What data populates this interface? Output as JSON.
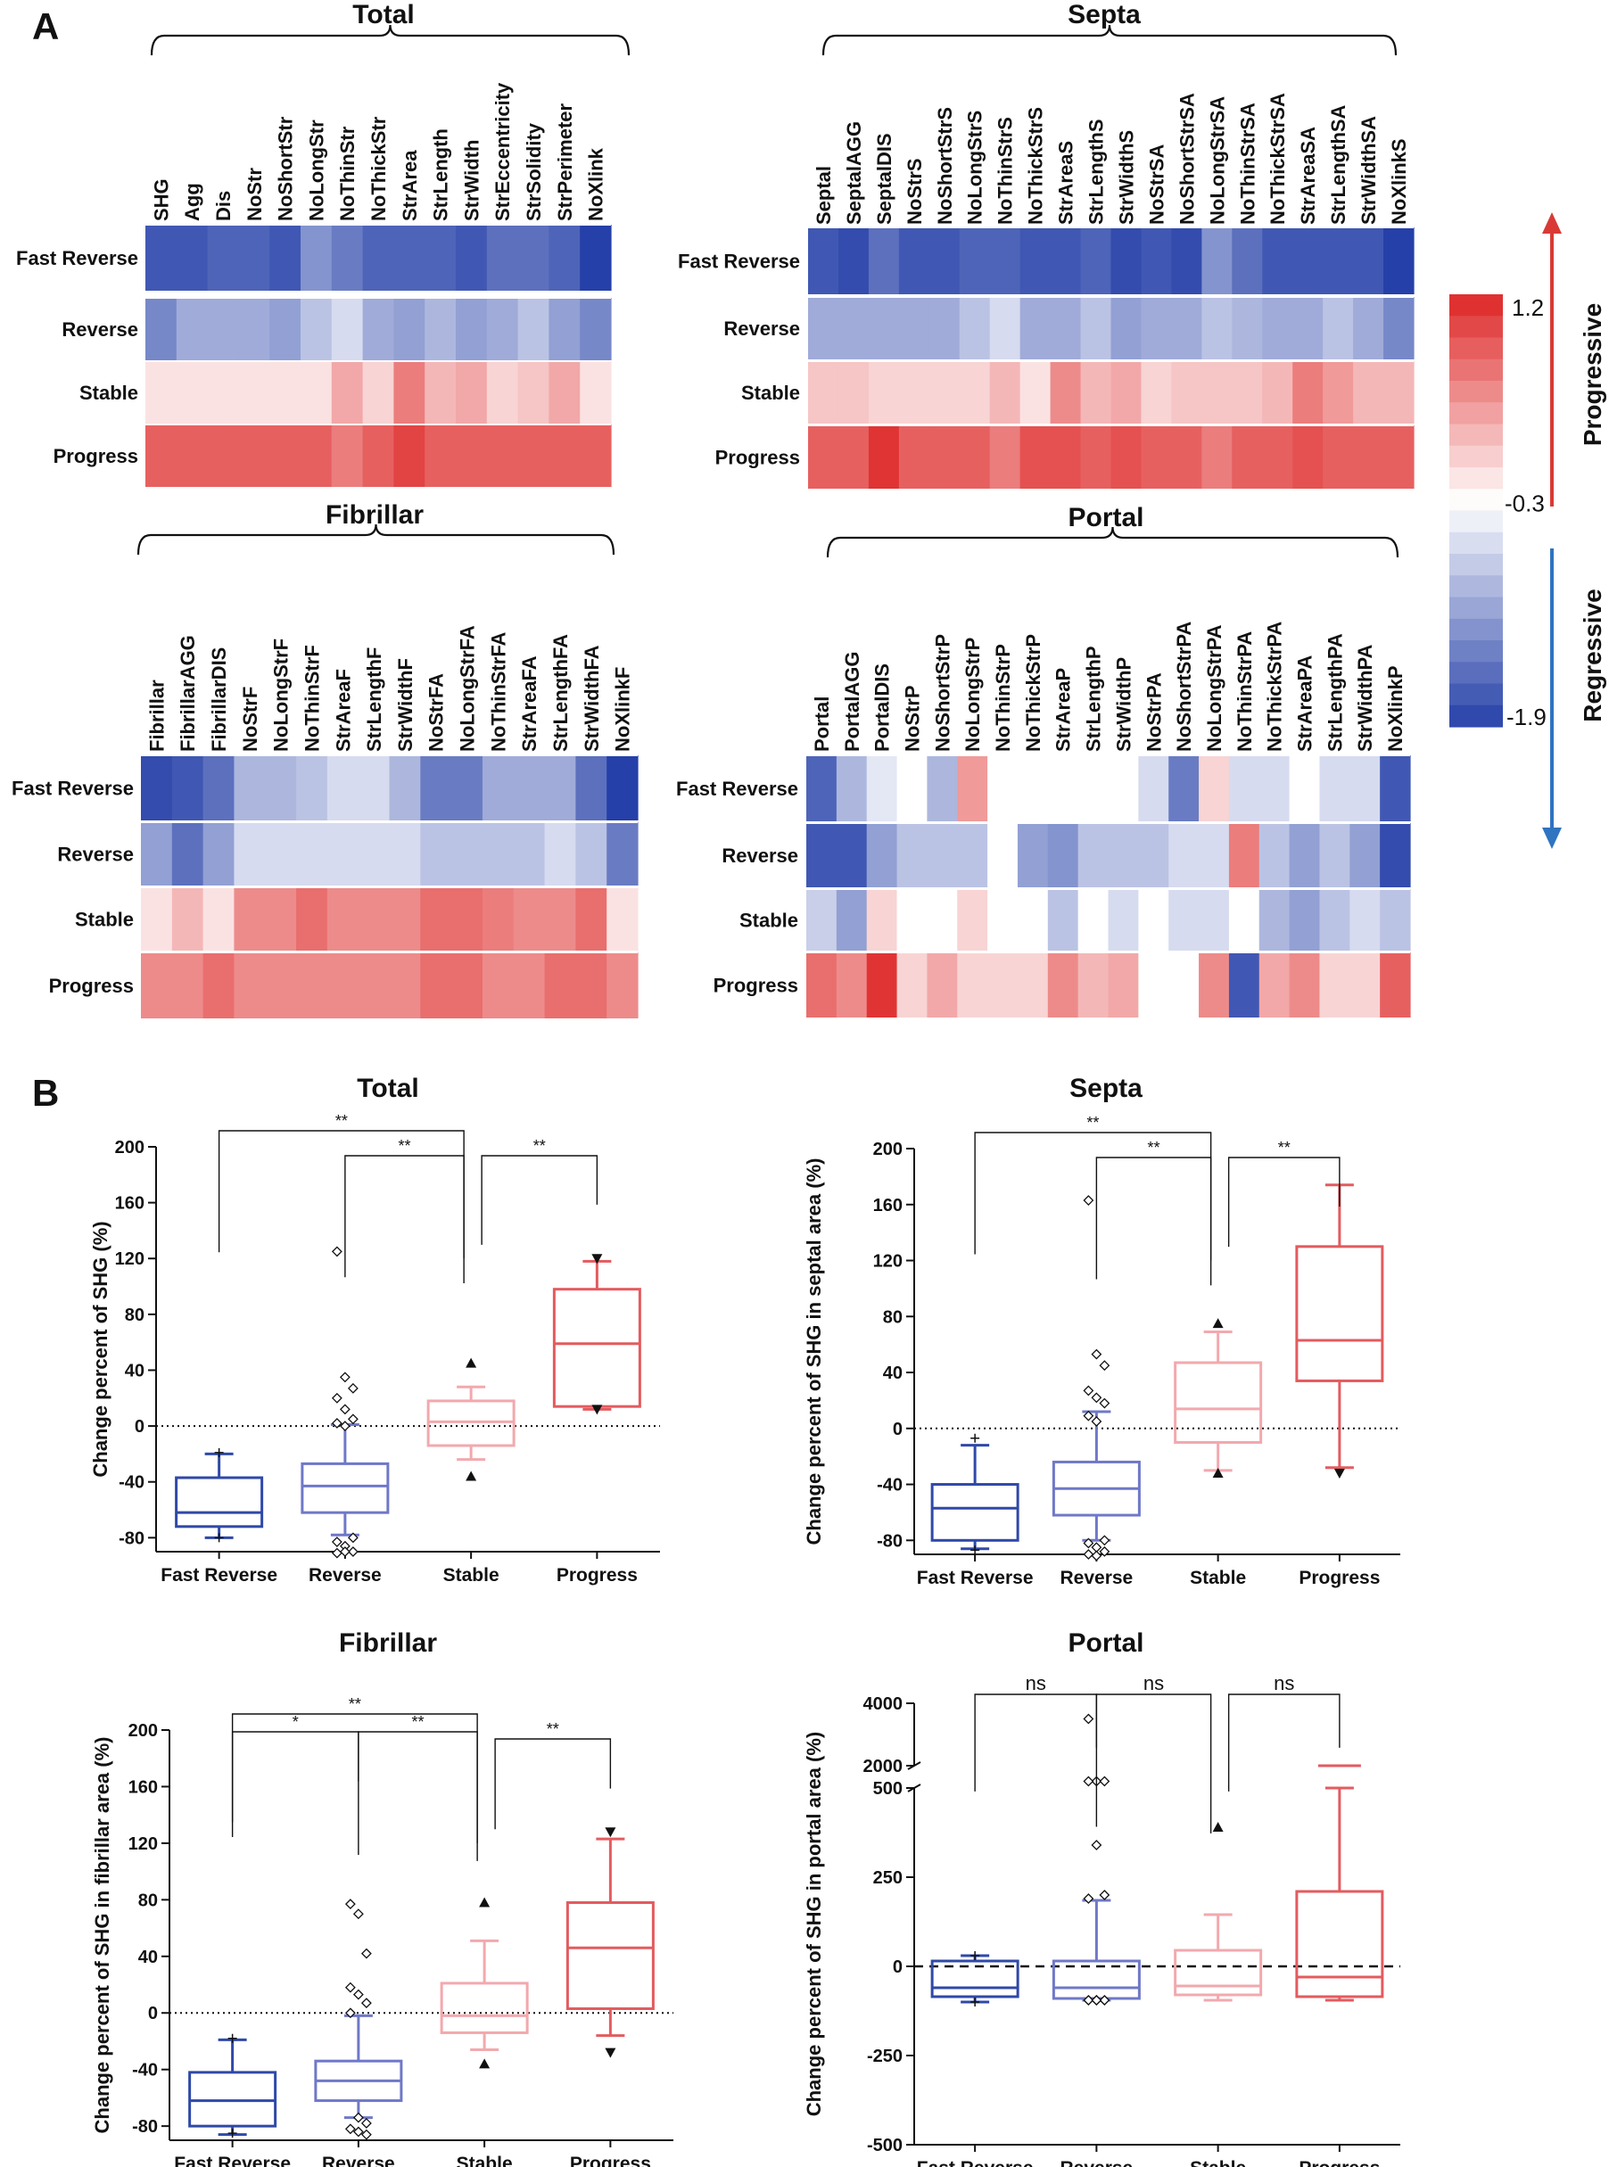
{
  "panel_labels": {
    "a": "A",
    "b": "B"
  },
  "colors": {
    "fast_reverse": "#2f49a8",
    "reverse": "#6f78c8",
    "stable": "#f2a9ae",
    "progress": "#e35b5f",
    "progressive_arrow": "#d93a36",
    "regressive_arrow": "#2f74c0",
    "grid": "#ffffff"
  },
  "legend": {
    "max_label": "1.2",
    "mid_label": "-0.3",
    "min_label": "-1.9",
    "progressive": "Progressive",
    "regressive": "Regressive",
    "min": -1.9,
    "mid": -0.3,
    "max": 1.2
  },
  "chart_data": [
    {
      "type": "heatmap",
      "title": "Total",
      "rows": [
        "Fast Reverse",
        "Reverse",
        "Stable",
        "Progress"
      ],
      "columns": [
        "SHG",
        "Agg",
        "Dis",
        "NoStr",
        "NoShortStr",
        "NoLongStr",
        "NoThinStr",
        "NoThickStr",
        "StrArea",
        "StrLength",
        "StrWidth",
        "StrEccentricity",
        "StrSolidity",
        "StrPerimeter",
        "NoXlink"
      ],
      "values": [
        [
          -1.7,
          -1.7,
          -1.6,
          -1.6,
          -1.7,
          -1.2,
          -1.4,
          -1.6,
          -1.6,
          -1.6,
          -1.7,
          -1.5,
          -1.5,
          -1.6,
          -1.9
        ],
        [
          -1.3,
          -1.0,
          -1.0,
          -1.0,
          -1.1,
          -0.8,
          -0.6,
          -1.0,
          -1.1,
          -0.9,
          -1.1,
          -1.0,
          -0.8,
          -1.1,
          -1.3
        ],
        [
          -0.1,
          -0.1,
          -0.1,
          -0.1,
          -0.1,
          -0.1,
          0.3,
          0.0,
          0.6,
          0.2,
          0.3,
          0.0,
          0.1,
          0.3,
          -0.1
        ],
        [
          0.8,
          0.8,
          0.8,
          0.8,
          0.8,
          0.8,
          0.6,
          0.8,
          1.0,
          0.8,
          0.8,
          0.8,
          0.8,
          0.8,
          0.8
        ]
      ]
    },
    {
      "type": "heatmap",
      "title": "Septa",
      "rows": [
        "Fast Reverse",
        "Reverse",
        "Stable",
        "Progress"
      ],
      "columns": [
        "Septal",
        "SeptalAGG",
        "SeptalDIS",
        "NoStrS",
        "NoShortStrS",
        "NoLongStrS",
        "NoThinStrS",
        "NoThickStrS",
        "StrAreaS",
        "StrLengthS",
        "StrWidthS",
        "NoStrSA",
        "NoShortStrSA",
        "NoLongStrSA",
        "NoThinStrSA",
        "NoThickStrSA",
        "StrAreaSA",
        "StrLengthSA",
        "StrWidthSA",
        "NoXlinkS"
      ],
      "values": [
        [
          -1.7,
          -1.8,
          -1.5,
          -1.7,
          -1.7,
          -1.6,
          -1.6,
          -1.7,
          -1.7,
          -1.6,
          -1.8,
          -1.7,
          -1.8,
          -1.2,
          -1.5,
          -1.7,
          -1.7,
          -1.7,
          -1.7,
          -1.9
        ],
        [
          -1.0,
          -1.0,
          -1.0,
          -1.0,
          -1.0,
          -0.8,
          -0.6,
          -1.0,
          -1.0,
          -0.8,
          -1.1,
          -1.0,
          -1.0,
          -0.8,
          -0.9,
          -1.0,
          -1.0,
          -0.8,
          -1.0,
          -1.3
        ],
        [
          0.1,
          0.1,
          0.0,
          0.0,
          0.0,
          0.0,
          0.2,
          -0.1,
          0.5,
          0.2,
          0.3,
          0.0,
          0.1,
          0.1,
          0.1,
          0.2,
          0.6,
          0.4,
          0.2,
          0.2
        ],
        [
          0.8,
          0.8,
          1.1,
          0.8,
          0.8,
          0.8,
          0.6,
          0.9,
          0.9,
          0.8,
          0.9,
          0.8,
          0.8,
          0.6,
          0.8,
          0.8,
          0.9,
          0.8,
          0.8,
          0.8
        ]
      ]
    },
    {
      "type": "heatmap",
      "title": "Fibrillar",
      "rows": [
        "Fast Reverse",
        "Reverse",
        "Stable",
        "Progress"
      ],
      "columns": [
        "Fibrillar",
        "FibrillarAGG",
        "FibrillarDIS",
        "NoStrF",
        "NoLongStrF",
        "NoThinStrF",
        "StrAreaF",
        "StrLengthF",
        "StrWidthF",
        "NoStrFA",
        "NoLongStrFA",
        "NoThinStrFA",
        "StrAreaFA",
        "StrLengthFA",
        "StrWidthFA",
        "NoXlinkF"
      ],
      "values": [
        [
          -1.8,
          -1.7,
          -1.5,
          -0.9,
          -0.9,
          -0.8,
          -0.6,
          -0.6,
          -0.9,
          -1.4,
          -1.4,
          -1.0,
          -1.0,
          -1.0,
          -1.5,
          -1.9
        ],
        [
          -1.1,
          -1.5,
          -1.1,
          -0.6,
          -0.6,
          -0.6,
          -0.6,
          -0.6,
          -0.6,
          -0.8,
          -0.8,
          -0.8,
          -0.8,
          -0.6,
          -0.8,
          -1.4
        ],
        [
          -0.1,
          0.2,
          -0.1,
          0.5,
          0.5,
          0.7,
          0.5,
          0.5,
          0.5,
          0.7,
          0.7,
          0.6,
          0.5,
          0.5,
          0.7,
          -0.1
        ],
        [
          0.5,
          0.5,
          0.7,
          0.5,
          0.5,
          0.5,
          0.5,
          0.5,
          0.5,
          0.7,
          0.7,
          0.5,
          0.5,
          0.7,
          0.7,
          0.5
        ]
      ]
    },
    {
      "type": "heatmap",
      "title": "Portal",
      "rows": [
        "Fast Reverse",
        "Reverse",
        "Stable",
        "Progress"
      ],
      "columns": [
        "Portal",
        "PortalAGG",
        "PortalDIS",
        "NoStrP",
        "NoShortStrP",
        "NoLongStrP",
        "NoThinStrP",
        "NoThickStrP",
        "StrAreaP",
        "StrLengthP",
        "StrWidthP",
        "NoStrPA",
        "NoShortStrPA",
        "NoLongStrPA",
        "NoThinStrPA",
        "NoThickStrPA",
        "StrAreaPA",
        "StrLengthPA",
        "StrWidthPA",
        "NoXlinkP"
      ],
      "values": [
        [
          -1.6,
          -0.9,
          -0.5,
          -0.3,
          -0.9,
          0.4,
          -0.3,
          -0.3,
          -0.3,
          -0.3,
          -0.3,
          -0.6,
          -1.4,
          0.0,
          -0.6,
          -0.6,
          -0.3,
          -0.6,
          -0.6,
          -1.7
        ],
        [
          -1.7,
          -1.7,
          -1.1,
          -0.8,
          -0.8,
          -0.8,
          -0.3,
          -1.1,
          -1.2,
          -0.8,
          -0.8,
          -0.8,
          -0.6,
          -0.6,
          0.6,
          -0.8,
          -1.1,
          -0.8,
          -1.1,
          -1.8
        ],
        [
          -0.7,
          -1.1,
          0.0,
          -0.3,
          -0.3,
          0.0,
          -0.3,
          -0.3,
          -0.8,
          -0.3,
          -0.6,
          -0.3,
          -0.6,
          -0.6,
          -0.3,
          -0.9,
          -1.1,
          -0.8,
          -0.6,
          -0.8
        ],
        [
          0.7,
          0.5,
          1.1,
          0.0,
          0.3,
          0.0,
          0.0,
          0.0,
          0.5,
          0.2,
          0.3,
          -0.3,
          -0.3,
          0.5,
          -1.7,
          0.3,
          0.5,
          0.0,
          0.0,
          0.8
        ]
      ]
    },
    {
      "type": "box",
      "title": "Total",
      "ylabel": "Change percent of SHG  (%)",
      "categories": [
        "Fast Reverse",
        "Reverse",
        "Stable",
        "Progress"
      ],
      "ylim": [
        -90,
        200
      ],
      "yticks": [
        -80,
        -40,
        0,
        40,
        80,
        120,
        160,
        200
      ],
      "reference_line": "dotted",
      "boxes": [
        {
          "whisker_low": -80,
          "q1": -72,
          "median": -62,
          "q3": -37,
          "whisker_high": -20,
          "outliers": [],
          "markers": [
            {
              "y": -80,
              "symbol": "plus"
            },
            {
              "y": -19,
              "symbol": "plus"
            }
          ]
        },
        {
          "whisker_low": -78,
          "q1": -62,
          "median": -43,
          "q3": -27,
          "whisker_high": 1,
          "outliers": [
            125,
            35,
            27,
            20,
            12,
            5,
            2,
            0,
            -80,
            -83,
            -86,
            -90,
            -91,
            -90
          ],
          "markers": []
        },
        {
          "whisker_low": -24,
          "q1": -14,
          "median": 3,
          "q3": 18,
          "whisker_high": 28,
          "outliers": [],
          "markers": [
            {
              "y": 45,
              "symbol": "triangle-up"
            },
            {
              "y": -36,
              "symbol": "triangle-up"
            }
          ]
        },
        {
          "whisker_low": 12,
          "q1": 14,
          "median": 59,
          "q3": 98,
          "whisker_high": 118,
          "outliers": [],
          "markers": [
            {
              "y": 120,
              "symbol": "triangle-down"
            },
            {
              "y": 12,
              "symbol": "triangle-down"
            }
          ]
        }
      ],
      "comparisons": [
        {
          "from": 0,
          "to": 2,
          "label": "**"
        },
        {
          "from": 1,
          "to": 2,
          "label": "**"
        },
        {
          "from": 2,
          "to": 3,
          "label": "**"
        }
      ]
    },
    {
      "type": "box",
      "title": "Septa",
      "ylabel": "Change percent of SHG in septal area (%)",
      "categories": [
        "Fast Reverse",
        "Reverse",
        "Stable",
        "Progress"
      ],
      "ylim": [
        -90,
        200
      ],
      "yticks": [
        -80,
        -40,
        0,
        40,
        80,
        120,
        160,
        200
      ],
      "reference_line": "dotted",
      "boxes": [
        {
          "whisker_low": -86,
          "q1": -80,
          "median": -57,
          "q3": -40,
          "whisker_high": -12,
          "outliers": [],
          "markers": [
            {
              "y": -87,
              "symbol": "plus"
            },
            {
              "y": -7,
              "symbol": "plus"
            }
          ]
        },
        {
          "whisker_low": -80,
          "q1": -62,
          "median": -43,
          "q3": -24,
          "whisker_high": 12,
          "outliers": [
            163,
            53,
            45,
            27,
            22,
            18,
            9,
            5,
            -80,
            -82,
            -85,
            -88,
            -90,
            -91
          ],
          "markers": []
        },
        {
          "whisker_low": -30,
          "q1": -10,
          "median": 14,
          "q3": 47,
          "whisker_high": 69,
          "outliers": [],
          "markers": [
            {
              "y": 75,
              "symbol": "triangle-up"
            },
            {
              "y": -32,
              "symbol": "triangle-up"
            }
          ]
        },
        {
          "whisker_low": -28,
          "q1": 34,
          "median": 63,
          "q3": 130,
          "whisker_high": 174,
          "outliers": [],
          "markers": [
            {
              "y": -32,
              "symbol": "triangle-down"
            }
          ]
        }
      ],
      "comparisons": [
        {
          "from": 0,
          "to": 2,
          "label": "**"
        },
        {
          "from": 1,
          "to": 2,
          "label": "**"
        },
        {
          "from": 2,
          "to": 3,
          "label": "**"
        }
      ]
    },
    {
      "type": "box",
      "title": "Fibrillar",
      "ylabel": "Change percent of SHG in fibrillar area (%)",
      "categories": [
        "Fast Reverse",
        "Reverse",
        "Stable",
        "Progress"
      ],
      "ylim": [
        -90,
        200
      ],
      "yticks": [
        -80,
        -40,
        0,
        40,
        80,
        120,
        160,
        200
      ],
      "reference_line": "dotted",
      "boxes": [
        {
          "whisker_low": -86,
          "q1": -80,
          "median": -62,
          "q3": -42,
          "whisker_high": -19,
          "outliers": [],
          "markers": [
            {
              "y": -85,
              "symbol": "plus"
            },
            {
              "y": -18,
              "symbol": "plus"
            }
          ]
        },
        {
          "whisker_low": -74,
          "q1": -62,
          "median": -48,
          "q3": -34,
          "whisker_high": -2,
          "outliers": [
            77,
            70,
            42,
            18,
            13,
            7,
            0,
            -74,
            -78,
            -82,
            -84,
            -86
          ],
          "markers": []
        },
        {
          "whisker_low": -26,
          "q1": -14,
          "median": -2,
          "q3": 21,
          "whisker_high": 51,
          "outliers": [],
          "markers": [
            {
              "y": 78,
              "symbol": "triangle-up"
            },
            {
              "y": -36,
              "symbol": "triangle-up"
            }
          ]
        },
        {
          "whisker_low": -16,
          "q1": 3,
          "median": 46,
          "q3": 78,
          "whisker_high": 123,
          "outliers": [],
          "markers": [
            {
              "y": 128,
              "symbol": "triangle-down"
            },
            {
              "y": -28,
              "symbol": "triangle-down"
            }
          ]
        }
      ],
      "comparisons": [
        {
          "from": 0,
          "to": 1,
          "label": "*"
        },
        {
          "from": 0,
          "to": 2,
          "label": "**"
        },
        {
          "from": 1,
          "to": 2,
          "label": "**"
        },
        {
          "from": 2,
          "to": 3,
          "label": "**"
        }
      ]
    },
    {
      "type": "box",
      "title": "Portal",
      "ylabel": "Change percent of SHG in portal area (%)",
      "categories": [
        "Fast Reverse",
        "Reverse",
        "Stable",
        "Progress"
      ],
      "ylim": [
        -500,
        4000
      ],
      "yticks": [
        -500,
        -250,
        0,
        250,
        500,
        2000,
        4000
      ],
      "axis_break": {
        "lower_max": 500,
        "upper_min": 2000
      },
      "reference_line": "dashed",
      "boxes": [
        {
          "whisker_low": -100,
          "q1": -85,
          "median": -60,
          "q3": 15,
          "whisker_high": 30,
          "outliers": [],
          "markers": [
            {
              "y": -100,
              "symbol": "plus"
            },
            {
              "y": 30,
              "symbol": "plus"
            }
          ]
        },
        {
          "whisker_low": -95,
          "q1": -90,
          "median": -60,
          "q3": 15,
          "whisker_high": 185,
          "outliers": [
            3500,
            1500,
            1500,
            1500,
            340,
            200,
            190,
            -95,
            -95,
            -95,
            -95,
            -95,
            -95,
            -95
          ],
          "markers": []
        },
        {
          "whisker_low": -95,
          "q1": -80,
          "median": -55,
          "q3": 45,
          "whisker_high": 145,
          "outliers": [],
          "markers": [
            {
              "y": 390,
              "symbol": "triangle-up"
            }
          ]
        },
        {
          "whisker_low": -95,
          "q1": -85,
          "median": -30,
          "q3": 210,
          "whisker_high": 500,
          "outliers": [],
          "markers": [
            {
              "y": 2000,
              "symbol": "line"
            }
          ]
        }
      ],
      "comparisons": [
        {
          "from": 0,
          "to": 1,
          "label": "ns"
        },
        {
          "from": 1,
          "to": 2,
          "label": "ns"
        },
        {
          "from": 2,
          "to": 3,
          "label": "ns"
        }
      ]
    }
  ]
}
